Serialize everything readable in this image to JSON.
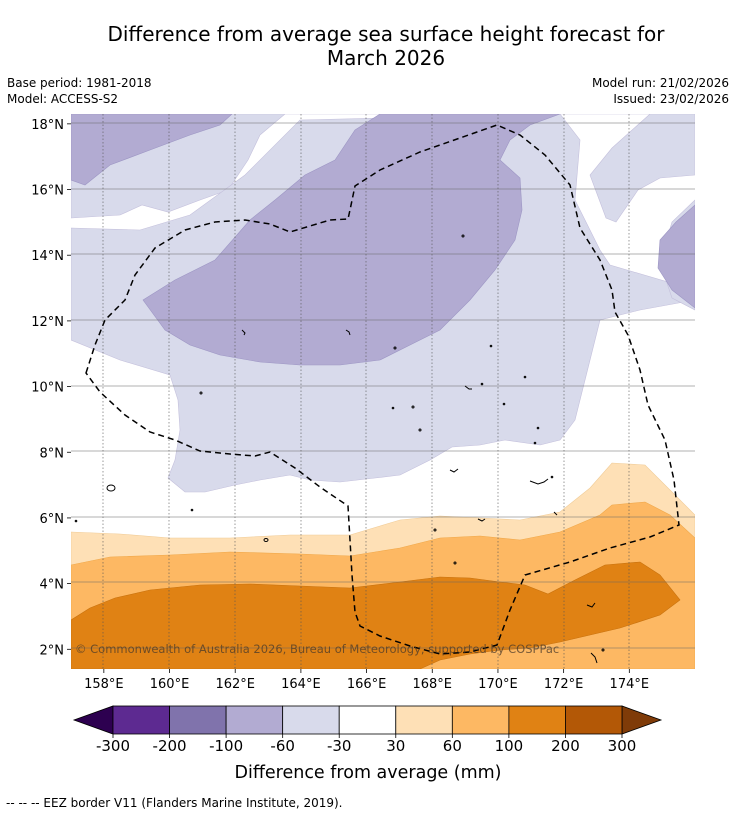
{
  "title": "Difference from average sea surface height forecast for March 2026",
  "title_lines": [
    "Difference from average sea surface height forecast for",
    "March 2026"
  ],
  "base_period": "Base period: 1981-2018",
  "model": "Model: ACCESS-S2",
  "model_run": "Model run: 21/02/2026",
  "issued": "Issued: 23/02/2026",
  "copyright": "© Commonwealth of Australia 2026, Bureau of Meteorology, supported by COSPPac",
  "footnote": "--  --  -- EEZ border V11 (Flanders Marine Institute, 2019).",
  "map": {
    "lon_range": [
      157,
      176
    ],
    "lat_range": [
      1.4,
      18.3
    ],
    "lon_ticks": [
      {
        "value": 158,
        "label": "158°E"
      },
      {
        "value": 160,
        "label": "160°E"
      },
      {
        "value": 162,
        "label": "162°E"
      },
      {
        "value": 164,
        "label": "164°E"
      },
      {
        "value": 166,
        "label": "166°E"
      },
      {
        "value": 168,
        "label": "168°E"
      },
      {
        "value": 170,
        "label": "170°E"
      },
      {
        "value": 172,
        "label": "172°E"
      },
      {
        "value": 174,
        "label": "174°E"
      }
    ],
    "lat_ticks": [
      {
        "value": 2,
        "label": "2°N"
      },
      {
        "value": 4,
        "label": "4°N"
      },
      {
        "value": 6,
        "label": "6°N"
      },
      {
        "value": 8,
        "label": "8°N"
      },
      {
        "value": 10,
        "label": "10°N"
      },
      {
        "value": 12,
        "label": "12°N"
      },
      {
        "value": 14,
        "label": "14°N"
      },
      {
        "value": 16,
        "label": "16°N"
      },
      {
        "value": 18,
        "label": "18°N"
      }
    ]
  },
  "legend": {
    "label": "Difference from average (mm)",
    "ticks": [
      "-300",
      "-200",
      "-100",
      "-60",
      "-30",
      "30",
      "60",
      "100",
      "200",
      "300"
    ],
    "under_color": "#2d0050",
    "over_color": "#7f3b08",
    "colors": [
      "#5d2a91",
      "#8073ac",
      "#b2abd2",
      "#d8daeb",
      "#ffffff",
      "#fee0b6",
      "#fdb863",
      "#e08214",
      "#b35806"
    ]
  }
}
